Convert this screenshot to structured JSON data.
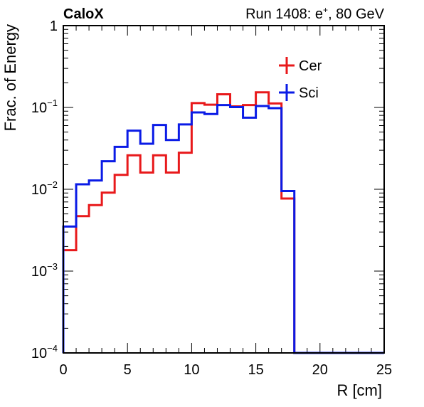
{
  "chart_data": {
    "type": "line",
    "title_left": "CaloX",
    "title_right": "Run 1408: e",
    "title_right_sup": "+",
    "title_right_tail": ", 80 GeV",
    "xlabel": "R [cm]",
    "ylabel": "Frac. of Energy",
    "xlim": [
      0,
      25
    ],
    "ylim": [
      0.0001,
      1
    ],
    "yscale": "log",
    "x_ticks": [
      "0",
      "5",
      "10",
      "15",
      "20",
      "25"
    ],
    "y_ticks": [
      {
        "value": 1,
        "label": "1"
      },
      {
        "value": 0.1,
        "base": "10",
        "exp": "−1"
      },
      {
        "value": 0.01,
        "base": "10",
        "exp": "−2"
      },
      {
        "value": 0.001,
        "base": "10",
        "exp": "−3"
      },
      {
        "value": 0.0001,
        "base": "10",
        "exp": "−4"
      }
    ],
    "legend_position": "top-right",
    "bin_edges": [
      0,
      1,
      2,
      3,
      4,
      5,
      6,
      7,
      8,
      9,
      10,
      11,
      12,
      13,
      14,
      15,
      16,
      17,
      18,
      19,
      20,
      21,
      22,
      23,
      24,
      25
    ],
    "series": [
      {
        "name": "Cer",
        "color": "#e8191b",
        "values": [
          0.0018,
          0.0047,
          0.0064,
          0.0091,
          0.015,
          0.026,
          0.016,
          0.026,
          0.016,
          0.028,
          0.113,
          0.108,
          0.145,
          0.103,
          0.107,
          0.153,
          0.112,
          0.0077,
          0,
          0,
          0,
          0,
          0,
          0,
          0
        ]
      },
      {
        "name": "Sci",
        "color": "#0a1be6",
        "values": [
          0.0035,
          0.0115,
          0.0128,
          0.022,
          0.033,
          0.052,
          0.036,
          0.061,
          0.04,
          0.062,
          0.087,
          0.083,
          0.107,
          0.101,
          0.075,
          0.104,
          0.098,
          0.0095,
          0,
          0,
          0,
          0,
          0,
          0,
          0
        ]
      }
    ]
  }
}
